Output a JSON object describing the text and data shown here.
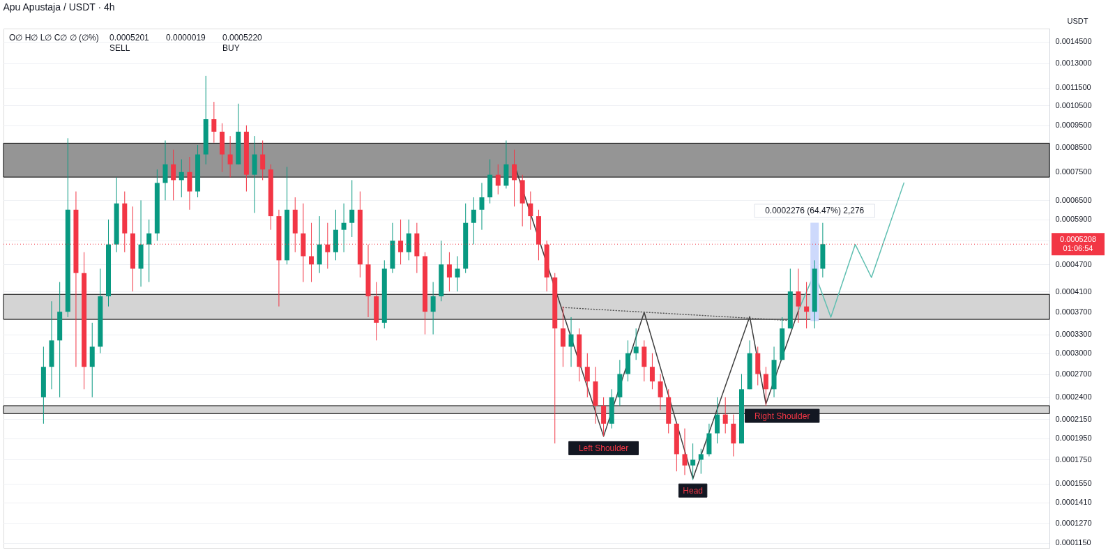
{
  "chart_data": {
    "type": "candlestick",
    "title": "Apu Apustaja / USDT · 4h",
    "ylabel": "USDT",
    "categories": [
      null,
      null,
      null,
      null,
      null,
      null,
      null,
      null,
      null,
      null,
      null,
      null,
      null,
      null,
      null,
      null,
      null,
      null,
      null,
      null,
      null,
      null,
      null,
      null,
      null,
      null,
      null,
      null,
      null,
      null,
      null,
      null,
      null,
      null,
      null,
      null,
      null,
      null,
      null,
      null,
      null,
      null,
      null,
      null,
      null,
      null,
      null,
      null,
      null,
      null,
      null,
      null,
      null,
      null,
      null,
      null,
      null,
      null,
      null,
      null,
      null,
      null,
      null,
      null,
      null,
      null,
      null,
      null,
      null,
      null,
      null,
      null,
      null,
      null,
      null,
      null,
      null,
      null,
      null,
      null,
      null,
      null,
      null,
      null,
      null,
      null,
      null,
      null,
      null,
      null,
      null,
      null,
      null,
      null,
      null,
      null,
      null,
      null,
      null,
      null,
      null,
      null,
      null,
      null,
      null,
      null,
      null,
      null,
      null,
      null,
      null,
      null,
      null,
      null,
      null,
      null,
      null,
      null,
      null,
      null,
      null,
      null,
      null,
      null,
      null,
      null,
      null,
      null
    ],
    "ohlc": [
      null,
      null,
      null,
      null,
      [
        0.00024,
        0.00031,
        0.00021,
        0.00028
      ],
      [
        0.00028,
        0.00039,
        0.00025,
        0.00032
      ],
      [
        0.00032,
        0.00043,
        0.00024,
        0.00037
      ],
      [
        0.00037,
        0.00089,
        0.00036,
        0.00062
      ],
      [
        0.00062,
        0.00068,
        0.00028,
        0.00045
      ],
      [
        0.00045,
        0.0005,
        0.00025,
        0.00028
      ],
      [
        0.00028,
        0.00035,
        0.00024,
        0.00031
      ],
      [
        0.00031,
        0.00046,
        0.0003,
        0.0004
      ],
      [
        0.0004,
        0.00059,
        0.00038,
        0.00052
      ],
      [
        0.00052,
        0.00073,
        0.0005,
        0.00064
      ],
      [
        0.00064,
        0.00068,
        0.0005,
        0.00055
      ],
      [
        0.00055,
        0.00063,
        0.00041,
        0.00046
      ],
      [
        0.00046,
        0.00065,
        0.00042,
        0.00052
      ],
      [
        0.00052,
        0.00059,
        0.00043,
        0.00055
      ],
      [
        0.00055,
        0.00076,
        0.00053,
        0.00071
      ],
      [
        0.00071,
        0.00088,
        0.00065,
        0.00078
      ],
      [
        0.00078,
        0.00084,
        0.00065,
        0.00072
      ],
      [
        0.00072,
        0.0008,
        0.00066,
        0.00075
      ],
      [
        0.00075,
        0.00081,
        0.00062,
        0.00068
      ],
      [
        0.00068,
        0.00086,
        0.00066,
        0.00082
      ],
      [
        0.00082,
        0.00122,
        0.00078,
        0.00098
      ],
      [
        0.00098,
        0.00107,
        0.00087,
        0.00092
      ],
      [
        0.00092,
        0.00096,
        0.00075,
        0.00082
      ],
      [
        0.00082,
        0.0009,
        0.00073,
        0.00078
      ],
      [
        0.00078,
        0.00106,
        0.00078,
        0.00092
      ],
      [
        0.00092,
        0.00095,
        0.00068,
        0.00074
      ],
      [
        0.00074,
        0.0009,
        0.00061,
        0.00082
      ],
      [
        0.00082,
        0.00088,
        0.00072,
        0.00076
      ],
      [
        0.00076,
        0.00078,
        0.00056,
        0.0006
      ],
      [
        0.0006,
        0.00062,
        0.00038,
        0.00048
      ],
      [
        0.00048,
        0.00077,
        0.00047,
        0.00062
      ],
      [
        0.00062,
        0.00066,
        0.0005,
        0.00055
      ],
      [
        0.00055,
        0.00064,
        0.00043,
        0.00049
      ],
      [
        0.00049,
        0.00058,
        0.00043,
        0.00047
      ],
      [
        0.00047,
        0.0006,
        0.00045,
        0.00052
      ],
      [
        0.00052,
        0.00058,
        0.00046,
        0.0005
      ],
      [
        0.0005,
        0.00062,
        0.00048,
        0.00056
      ],
      [
        0.00056,
        0.00064,
        0.0005,
        0.00058
      ],
      [
        0.00058,
        0.00072,
        0.00054,
        0.00062
      ],
      [
        0.00062,
        0.00068,
        0.00044,
        0.00047
      ],
      [
        0.00047,
        0.00052,
        0.00036,
        0.0004
      ],
      [
        0.0004,
        0.00043,
        0.00032,
        0.00035
      ],
      [
        0.00035,
        0.00048,
        0.00034,
        0.00046
      ],
      [
        0.00046,
        0.00058,
        0.00045,
        0.00053
      ],
      [
        0.00053,
        0.00059,
        0.00047,
        0.0005
      ],
      [
        0.0005,
        0.00059,
        0.00048,
        0.00055
      ],
      [
        0.00055,
        0.00058,
        0.00045,
        0.00049
      ],
      [
        0.00049,
        0.0005,
        0.00033,
        0.00037
      ],
      [
        0.00037,
        0.00043,
        0.00033,
        0.0004
      ],
      [
        0.0004,
        0.00053,
        0.00039,
        0.00047
      ],
      [
        0.00047,
        0.0005,
        0.00041,
        0.00044
      ],
      [
        0.00044,
        0.00049,
        0.00041,
        0.00046
      ],
      [
        0.00046,
        0.00064,
        0.00045,
        0.00058
      ],
      [
        0.00058,
        0.00066,
        0.00052,
        0.00062
      ],
      [
        0.00062,
        0.00071,
        0.00056,
        0.00066
      ],
      [
        0.00066,
        0.0008,
        0.00064,
        0.00074
      ],
      [
        0.00074,
        0.00078,
        0.00067,
        0.0007
      ],
      [
        0.0007,
        0.00088,
        0.00069,
        0.00078
      ],
      [
        0.00078,
        0.00084,
        0.00063,
        0.00072
      ],
      [
        0.00072,
        0.00074,
        0.00057,
        0.00064
      ],
      [
        0.00064,
        0.00068,
        0.00056,
        0.0006
      ],
      [
        0.0006,
        0.00062,
        0.00048,
        0.00052
      ],
      [
        0.00052,
        0.00053,
        0.00041,
        0.00044
      ],
      [
        0.00044,
        0.00045,
        0.00019,
        0.00034
      ],
      [
        0.00034,
        0.00038,
        0.00028,
        0.00031
      ],
      [
        0.00031,
        0.00036,
        0.00028,
        0.00033
      ],
      [
        0.00033,
        0.00034,
        0.00026,
        0.00028
      ],
      [
        0.00028,
        0.0003,
        0.00024,
        0.00026
      ],
      [
        0.00026,
        0.00028,
        0.00021,
        0.00023
      ],
      [
        0.00023,
        0.00024,
        0.000197,
        0.00021
      ],
      [
        0.00021,
        0.00025,
        0.000205,
        0.00024
      ],
      [
        0.00024,
        0.00029,
        0.00023,
        0.00027
      ],
      [
        0.00027,
        0.00032,
        0.00026,
        0.0003
      ],
      [
        0.0003,
        0.00034,
        0.00029,
        0.00031
      ],
      [
        0.00031,
        0.00032,
        0.00026,
        0.00028
      ],
      [
        0.00028,
        0.0003,
        0.00025,
        0.00026
      ],
      [
        0.00026,
        0.00027,
        0.000225,
        0.00024
      ],
      [
        0.00024,
        0.00025,
        0.0002,
        0.00021
      ],
      [
        0.00021,
        0.00021,
        0.000165,
        0.00018
      ],
      [
        0.00018,
        0.000205,
        0.000162,
        0.00017
      ],
      [
        0.00017,
        0.00019,
        0.000158,
        0.000175
      ],
      [
        0.000175,
        0.000185,
        0.000163,
        0.00018
      ],
      [
        0.00018,
        0.00021,
        0.000178,
        0.0002
      ],
      [
        0.0002,
        0.00024,
        0.00019,
        0.00022
      ],
      [
        0.00022,
        0.00024,
        0.0002,
        0.00021
      ],
      [
        0.00021,
        0.00022,
        0.000178,
        0.00019
      ],
      [
        0.00019,
        0.00027,
        0.00019,
        0.00025
      ],
      [
        0.00025,
        0.00032,
        0.00025,
        0.0003
      ],
      [
        0.0003,
        0.00031,
        0.000255,
        0.00027
      ],
      [
        0.00027,
        0.00028,
        0.00023,
        0.00025
      ],
      [
        0.00025,
        0.00031,
        0.00024,
        0.00029
      ],
      [
        0.00029,
        0.00036,
        0.00029,
        0.00034
      ],
      [
        0.00034,
        0.00046,
        0.00034,
        0.00041
      ],
      [
        0.00041,
        0.00046,
        0.00035,
        0.00038
      ],
      [
        0.00038,
        0.00043,
        0.00034,
        0.00037
      ],
      [
        0.00037,
        0.00048,
        0.00034,
        0.00046
      ],
      [
        0.00046,
        0.00058,
        0.00044,
        0.0005208
      ],
      null,
      null,
      null,
      null,
      null,
      null,
      null,
      null,
      null,
      null,
      null,
      null,
      null,
      null,
      null,
      null,
      null,
      null,
      null,
      null,
      null,
      null,
      null,
      null,
      null,
      null,
      null
    ],
    "series": [
      {
        "type": "line",
        "color": "#3d3d3d",
        "values": [
          null,
          null,
          null,
          null,
          null,
          null,
          null,
          null,
          null,
          null,
          null,
          null,
          null,
          null,
          null,
          null,
          null,
          null,
          null,
          null,
          null,
          null,
          null,
          null,
          null,
          null,
          null,
          null,
          null,
          null,
          null,
          null,
          null,
          null,
          null,
          null,
          null,
          null,
          null,
          null,
          null,
          null,
          null,
          null,
          null,
          null,
          null,
          null,
          null,
          null,
          null,
          null,
          null,
          null,
          null,
          null,
          null,
          null,
          null,
          null,
          null,
          null,
          0.00078,
          null,
          null,
          null,
          null,
          null,
          null,
          null,
          null,
          null,
          null,
          0.000197,
          null,
          null,
          null,
          null,
          0.000369,
          null,
          null,
          null,
          null,
          null,
          0.000159,
          null,
          null,
          null,
          null,
          null,
          null,
          0.000361,
          null,
          0.000232,
          null,
          null,
          null,
          0.000372,
          null,
          null,
          null,
          null,
          null,
          null,
          null,
          null,
          null,
          null,
          null,
          null,
          null,
          null,
          null,
          null,
          null,
          null,
          null,
          null,
          null,
          null,
          null,
          null,
          null,
          null,
          null,
          null,
          null,
          null
        ]
      },
      {
        "type": "line",
        "color": "#555555",
        "line_style": "dotted",
        "values": [
          null,
          null,
          null,
          null,
          null,
          null,
          null,
          null,
          null,
          null,
          null,
          null,
          null,
          null,
          null,
          null,
          null,
          null,
          null,
          null,
          null,
          null,
          null,
          null,
          null,
          null,
          null,
          null,
          null,
          null,
          null,
          null,
          null,
          null,
          null,
          null,
          null,
          null,
          null,
          null,
          null,
          null,
          null,
          null,
          null,
          null,
          null,
          null,
          null,
          null,
          null,
          null,
          null,
          null,
          null,
          null,
          null,
          null,
          null,
          null,
          null,
          null,
          null,
          null,
          null,
          null,
          null,
          null,
          0.000378,
          null,
          null,
          null,
          null,
          null,
          null,
          null,
          null,
          null,
          null,
          null,
          null,
          null,
          null,
          null,
          null,
          null,
          null,
          null,
          null,
          null,
          null,
          null,
          null,
          null,
          null,
          null,
          0.000354,
          null,
          null,
          null,
          null,
          null,
          null,
          null,
          null,
          null,
          null,
          null,
          null,
          null,
          null,
          null,
          null,
          null,
          null,
          null,
          null,
          null,
          null,
          null,
          null,
          null,
          null,
          null,
          null,
          null,
          null,
          null
        ]
      },
      {
        "type": "line",
        "color": "#5fbfb1",
        "values": [
          null,
          null,
          null,
          null,
          null,
          null,
          null,
          null,
          null,
          null,
          null,
          null,
          null,
          null,
          null,
          null,
          null,
          null,
          null,
          null,
          null,
          null,
          null,
          null,
          null,
          null,
          null,
          null,
          null,
          null,
          null,
          null,
          null,
          null,
          null,
          null,
          null,
          null,
          null,
          null,
          null,
          null,
          null,
          null,
          null,
          null,
          null,
          null,
          null,
          null,
          null,
          null,
          null,
          null,
          null,
          null,
          null,
          null,
          null,
          null,
          null,
          null,
          null,
          null,
          null,
          null,
          null,
          null,
          null,
          null,
          null,
          null,
          null,
          null,
          null,
          null,
          null,
          null,
          null,
          null,
          null,
          null,
          null,
          null,
          null,
          null,
          null,
          null,
          null,
          null,
          null,
          null,
          null,
          null,
          null,
          null,
          null,
          0.000372,
          null,
          0.00045,
          null,
          0.00036,
          null,
          null,
          0.00052,
          null,
          0.00044,
          null,
          null,
          null,
          0.00071,
          null,
          null,
          null,
          null,
          null,
          null,
          null,
          null,
          null,
          null,
          null,
          null,
          null,
          null,
          null,
          null,
          null
        ]
      },
      {
        "type": "bar",
        "color": "#cdd9fc",
        "values": [
          null,
          null,
          null,
          null,
          null,
          null,
          null,
          null,
          null,
          null,
          null,
          null,
          null,
          null,
          null,
          null,
          null,
          null,
          null,
          null,
          null,
          null,
          null,
          null,
          null,
          null,
          null,
          null,
          null,
          null,
          null,
          null,
          null,
          null,
          null,
          null,
          null,
          null,
          null,
          null,
          null,
          null,
          null,
          null,
          null,
          null,
          null,
          null,
          null,
          null,
          null,
          null,
          null,
          null,
          null,
          null,
          null,
          null,
          null,
          null,
          null,
          null,
          null,
          null,
          null,
          null,
          null,
          null,
          null,
          null,
          null,
          null,
          null,
          null,
          null,
          null,
          null,
          null,
          null,
          null,
          null,
          null,
          null,
          null,
          null,
          null,
          null,
          null,
          null,
          null,
          null,
          null,
          null,
          null,
          null,
          null,
          null,
          null,
          null,
          0.0002276,
          null,
          null,
          null,
          null,
          null,
          null,
          null,
          null,
          null,
          null,
          null,
          null,
          null,
          null,
          null,
          null,
          null,
          null,
          null,
          null,
          null,
          null,
          null,
          null,
          null,
          null,
          null,
          null
        ],
        "base": [
          null,
          null,
          null,
          null,
          null,
          null,
          null,
          null,
          null,
          null,
          null,
          null,
          null,
          null,
          null,
          null,
          null,
          null,
          null,
          null,
          null,
          null,
          null,
          null,
          null,
          null,
          null,
          null,
          null,
          null,
          null,
          null,
          null,
          null,
          null,
          null,
          null,
          null,
          null,
          null,
          null,
          null,
          null,
          null,
          null,
          null,
          null,
          null,
          null,
          null,
          null,
          null,
          null,
          null,
          null,
          null,
          null,
          null,
          null,
          null,
          null,
          null,
          null,
          null,
          null,
          null,
          null,
          null,
          null,
          null,
          null,
          null,
          null,
          null,
          null,
          null,
          null,
          null,
          null,
          null,
          null,
          null,
          null,
          null,
          null,
          null,
          null,
          null,
          null,
          null,
          null,
          null,
          null,
          null,
          null,
          null,
          null,
          null,
          null,
          0.000353,
          null,
          null,
          null,
          null,
          null,
          null,
          null,
          null,
          null,
          null,
          null,
          null,
          null,
          null,
          null,
          null,
          null,
          null,
          null,
          null,
          null,
          null,
          null,
          null,
          null,
          null,
          null,
          null
        ]
      }
    ],
    "bands": [
      {
        "axis": "y",
        "from": 0.000731,
        "to": 0.000868,
        "color": "#959595"
      },
      {
        "axis": "y",
        "from": 0.000356,
        "to": 0.000404,
        "color": "#d4d4d4"
      },
      {
        "axis": "y",
        "from": 0.000221,
        "to": 0.00023,
        "color": "#d4d4d4"
      }
    ],
    "ref_lines": [
      {
        "axis": "y",
        "value": 0.0005208,
        "label": "0.0005208\n01:06:54",
        "color": "#f23645",
        "line_style": "dotted"
      }
    ],
    "annotations": [
      "O∅ H∅ L∅ C∅ ∅ (∅%)",
      "0.0005201\nSELL",
      "0.0000019",
      "0.0005220\nBUY",
      {
        "text": "Left Shoulder",
        "y": 0.000197
      },
      {
        "text": "Head",
        "y": 0.000159
      },
      {
        "text": "Right Shoulder",
        "y": 0.000232
      },
      {
        "text": "0.0002276 (64.47%) 2,276",
        "y": 0.0005806
      }
    ],
    "log": true,
    "ylim": [
      0.000112,
      0.00155
    ],
    "yticks": [
      {
        "value": 0.00145,
        "label": "0.0014500"
      },
      {
        "value": 0.0013,
        "label": "0.0013000"
      },
      {
        "value": 0.00115,
        "label": "0.0011500"
      },
      {
        "value": 0.00105,
        "label": "0.0010500"
      },
      {
        "value": 0.00095,
        "label": "0.0009500"
      },
      {
        "value": 0.00085,
        "label": "0.0008500"
      },
      {
        "value": 0.00075,
        "label": "0.0007500"
      },
      {
        "value": 0.00065,
        "label": "0.0006500"
      },
      {
        "value": 0.00059,
        "label": "0.0005900"
      },
      {
        "value": 0.00053,
        "label": null
      },
      {
        "value": 0.00047,
        "label": "0.0004700"
      },
      {
        "value": 0.00041,
        "label": "0.0004100"
      },
      {
        "value": 0.00037,
        "label": "0.0003700"
      },
      {
        "value": 0.00033,
        "label": "0.0003300"
      },
      {
        "value": 0.0003,
        "label": "0.0003000"
      },
      {
        "value": 0.00027,
        "label": "0.0002700"
      },
      {
        "value": 0.00024,
        "label": "0.0002400"
      },
      {
        "value": 0.000215,
        "label": "0.0002150"
      },
      {
        "value": 0.000195,
        "label": "0.0001950"
      },
      {
        "value": 0.000175,
        "label": "0.0001750"
      },
      {
        "value": 0.000155,
        "label": "0.0001550"
      },
      {
        "value": 0.000141,
        "label": "0.0001410"
      },
      {
        "value": 0.000127,
        "label": "0.0001270"
      },
      {
        "value": 0.000115,
        "label": "0.0001150"
      }
    ],
    "grid": "y",
    "tick_labels": "y"
  }
}
